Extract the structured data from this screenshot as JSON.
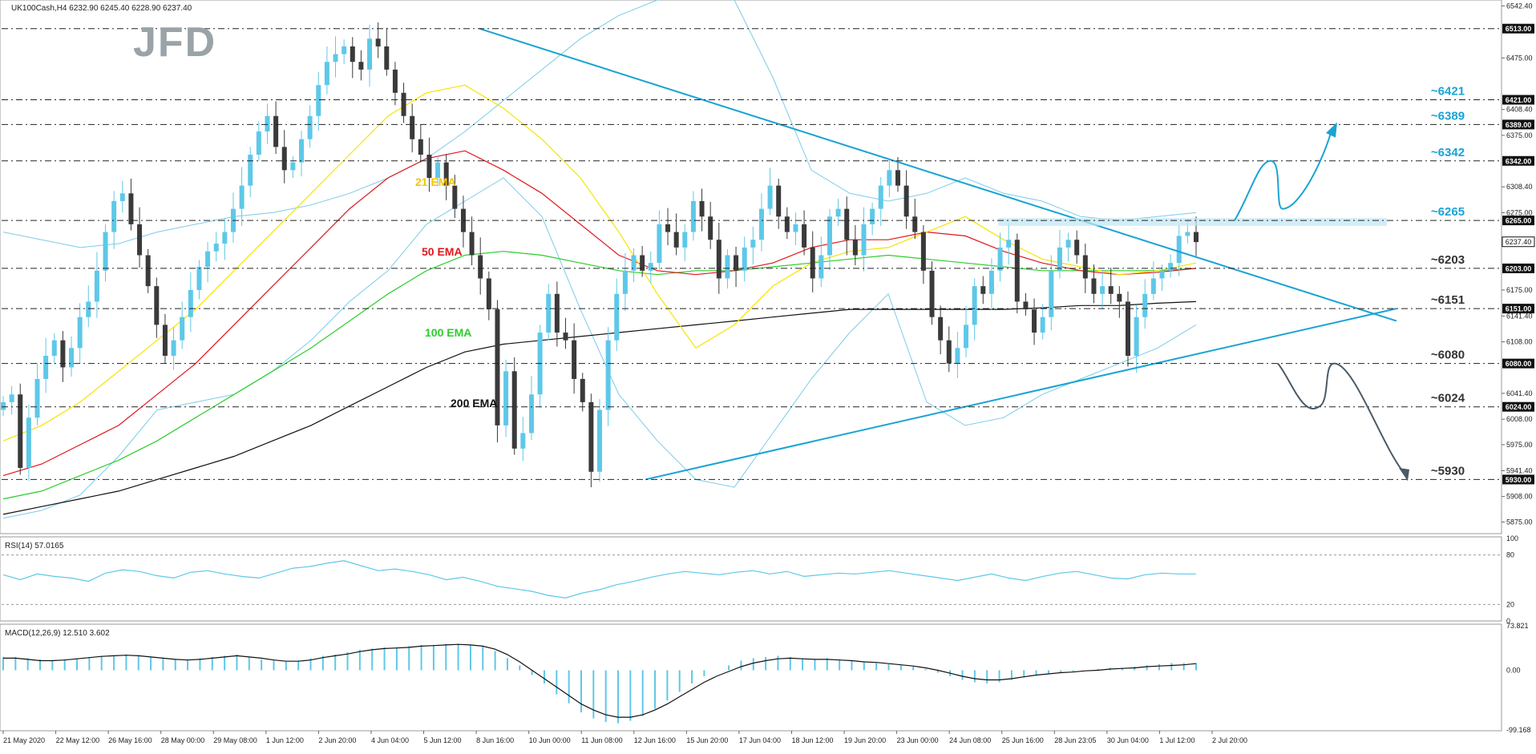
{
  "header": {
    "symbol_info": "UK100Cash,H4  6232.90 6245.40 6228.90 6237.40"
  },
  "brand": {
    "logo_text": "JFD"
  },
  "colors": {
    "bull": "#5ec8e8",
    "bear": "#3a3a3a",
    "ema21": "#f5e400",
    "ema50": "#e0161d",
    "ema100": "#2ecc2e",
    "ema200": "#111111",
    "bollinger": "#7dcbe8",
    "trendline": "#1aa3d4",
    "label_blue": "#1aa3d4",
    "label_dark": "#333333",
    "arrow_up": "#1aa3d4",
    "arrow_down": "#4a5a66"
  },
  "indicator_labels": {
    "ema21": "21 EMA",
    "ema50": "50 EMA",
    "ema100": "100 EMA",
    "ema200": "200 EMA"
  },
  "chart_data": [
    {
      "type": "candlestick",
      "symbol": "UK100Cash",
      "timeframe": "H4",
      "ylim": [
        5860,
        6550
      ],
      "y_ticks": [
        {
          "value": 6542.4,
          "label": "6542.40"
        },
        {
          "value": 6475.0,
          "label": "6475.00"
        },
        {
          "value": 6408.4,
          "label": "6408.40"
        },
        {
          "value": 6375.0,
          "label": "6375.00"
        },
        {
          "value": 6308.4,
          "label": "6308.40"
        },
        {
          "value": 6275.0,
          "label": "6275.00"
        },
        {
          "value": 6175.0,
          "label": "6175.00"
        },
        {
          "value": 6141.4,
          "label": "6141.40"
        },
        {
          "value": 6108.0,
          "label": "6108.00"
        },
        {
          "value": 6041.4,
          "label": "6041.40"
        },
        {
          "value": 6008.0,
          "label": "6008.00"
        },
        {
          "value": 5975.0,
          "label": "5975.00"
        },
        {
          "value": 5941.4,
          "label": "5941.40"
        },
        {
          "value": 5908.0,
          "label": "5908.00"
        },
        {
          "value": 5875.0,
          "label": "5875.00"
        }
      ],
      "levels": [
        {
          "value": 6513,
          "box_label": "6513.00",
          "annotation": ""
        },
        {
          "value": 6421,
          "box_label": "6421.00",
          "annotation": "~6421"
        },
        {
          "value": 6389,
          "box_label": "6389.00",
          "annotation": "~6389"
        },
        {
          "value": 6342,
          "box_label": "6342.00",
          "annotation": "~6342"
        },
        {
          "value": 6265,
          "box_label": "6265.00",
          "annotation": "~6265"
        },
        {
          "value": 6203,
          "box_label": "6203.00",
          "annotation": "~6203"
        },
        {
          "value": 6151,
          "box_label": "6151.00",
          "annotation": "~6151"
        },
        {
          "value": 6080,
          "box_label": "6080.00",
          "annotation": "~6080"
        },
        {
          "value": 6024,
          "box_label": "6024.00",
          "annotation": "~6024"
        },
        {
          "value": 5930,
          "box_label": "5930.00",
          "annotation": "~5930"
        }
      ],
      "current_price": {
        "value": 6237.4,
        "label": "6237.40"
      },
      "x_labels": [
        "21 May 2020",
        "22 May 12:00",
        "26 May 16:00",
        "28 May 00:00",
        "29 May 08:00",
        "1 Jun 12:00",
        "2 Jun 20:00",
        "4 Jun 04:00",
        "5 Jun 12:00",
        "8 Jun 16:00",
        "10 Jun 00:00",
        "11 Jun 08:00",
        "12 Jun 16:00",
        "15 Jun 20:00",
        "17 Jun 04:00",
        "18 Jun 12:00",
        "19 Jun 20:00",
        "23 Jun 00:00",
        "24 Jun 08:00",
        "25 Jun 16:00",
        "28 Jun 23:05",
        "30 Jun 04:00",
        "1 Jul 12:00",
        "2 Jul 20:00"
      ],
      "close_path": [
        6030,
        6040,
        5945,
        6010,
        6060,
        6090,
        6110,
        6075,
        6100,
        6140,
        6160,
        6200,
        6250,
        6290,
        6300,
        6260,
        6220,
        6180,
        6130,
        6090,
        6110,
        6140,
        6175,
        6205,
        6225,
        6235,
        6250,
        6280,
        6310,
        6350,
        6380,
        6400,
        6360,
        6330,
        6340,
        6370,
        6400,
        6440,
        6470,
        6480,
        6490,
        6470,
        6460,
        6500,
        6490,
        6460,
        6430,
        6400,
        6370,
        6350,
        6320,
        6340,
        6310,
        6280,
        6250,
        6220,
        6190,
        6150,
        6000,
        6070,
        5970,
        5990,
        6040,
        6120,
        6170,
        6120,
        6110,
        6060,
        6030,
        5940,
        6020,
        6110,
        6170,
        6200,
        6220,
        6200,
        6210,
        6260,
        6250,
        6230,
        6250,
        6290,
        6270,
        6240,
        6190,
        6220,
        6200,
        6230,
        6240,
        6280,
        6310,
        6270,
        6250,
        6260,
        6230,
        6190,
        6220,
        6270,
        6280,
        6240,
        6220,
        6260,
        6280,
        6310,
        6330,
        6310,
        6270,
        6250,
        6200,
        6140,
        6110,
        6080,
        6100,
        6130,
        6180,
        6170,
        6200,
        6230,
        6240,
        6160,
        6150,
        6120,
        6140,
        6200,
        6230,
        6240,
        6220,
        6190,
        6170,
        6180,
        6170,
        6160,
        6090,
        6140,
        6170,
        6190,
        6200,
        6210,
        6245,
        6250,
        6237
      ],
      "bb_upper": [
        6250,
        6240,
        6230,
        6235,
        6250,
        6260,
        6270,
        6275,
        6285,
        6300,
        6320,
        6345,
        6380,
        6420,
        6460,
        6500,
        6530,
        6550,
        6560,
        6550,
        6450,
        6330,
        6300,
        6290,
        6300,
        6320,
        6300,
        6290,
        6270,
        6265,
        6270,
        6275
      ],
      "bb_lower": [
        5880,
        5890,
        5910,
        5960,
        6020,
        6030,
        6040,
        6070,
        6110,
        6160,
        6200,
        6260,
        6290,
        6320,
        6270,
        6150,
        6040,
        5980,
        5930,
        5920,
        5990,
        6060,
        6120,
        6170,
        6030,
        6000,
        6010,
        6040,
        6060,
        6080,
        6100,
        6130
      ],
      "ema21": [
        5980,
        6000,
        6030,
        6070,
        6110,
        6150,
        6200,
        6250,
        6300,
        6350,
        6400,
        6430,
        6440,
        6410,
        6370,
        6320,
        6250,
        6170,
        6100,
        6130,
        6180,
        6210,
        6225,
        6230,
        6250,
        6270,
        6240,
        6215,
        6205,
        6195,
        6200,
        6210
      ],
      "ema50": [
        5935,
        5950,
        5975,
        6000,
        6040,
        6080,
        6130,
        6180,
        6230,
        6280,
        6320,
        6345,
        6355,
        6330,
        6300,
        6260,
        6220,
        6200,
        6195,
        6200,
        6210,
        6230,
        6240,
        6240,
        6250,
        6245,
        6225,
        6210,
        6200,
        6195,
        6198,
        6203
      ],
      "ema100": [
        5905,
        5915,
        5935,
        5955,
        5980,
        6010,
        6040,
        6070,
        6100,
        6135,
        6170,
        6200,
        6220,
        6225,
        6220,
        6210,
        6200,
        6195,
        6200,
        6200,
        6205,
        6210,
        6215,
        6220,
        6215,
        6210,
        6205,
        6200,
        6200,
        6200,
        6200,
        6203
      ],
      "ema200": [
        5885,
        5895,
        5905,
        5915,
        5930,
        5945,
        5960,
        5980,
        6000,
        6025,
        6050,
        6075,
        6095,
        6105,
        6110,
        6115,
        6120,
        6125,
        6130,
        6135,
        6140,
        6145,
        6150,
        6150,
        6150,
        6150,
        6150,
        6152,
        6155,
        6155,
        6158,
        6160
      ]
    },
    {
      "type": "line",
      "name": "RSI(14) 57.0165",
      "ylim": [
        0,
        100
      ],
      "y_ticks": [
        {
          "value": 100,
          "label": "100"
        },
        {
          "value": 80,
          "label": "80"
        },
        {
          "value": 20,
          "label": "20"
        },
        {
          "value": 0,
          "label": "0"
        }
      ],
      "values": [
        56,
        50,
        57,
        54,
        52,
        48,
        58,
        62,
        60,
        55,
        52,
        59,
        61,
        57,
        54,
        52,
        58,
        64,
        66,
        70,
        73,
        67,
        61,
        63,
        60,
        56,
        50,
        53,
        48,
        42,
        39,
        36,
        31,
        28,
        34,
        38,
        44,
        48,
        53,
        57,
        60,
        58,
        56,
        59,
        61,
        57,
        60,
        54,
        56,
        58,
        57,
        59,
        61,
        58,
        55,
        52,
        49,
        53,
        57,
        52,
        49,
        54,
        58,
        60,
        56,
        52,
        51,
        56,
        58,
        57,
        57
      ]
    },
    {
      "type": "bar+line",
      "name": "MACD(12,26,9) 12.510 3.602",
      "ylim": [
        -99.168,
        73.821
      ],
      "y_ticks": [
        {
          "value": 73.821,
          "label": "73.821"
        },
        {
          "value": 0,
          "label": "0.00"
        },
        {
          "value": -99.168,
          "label": "-99.168"
        }
      ],
      "histogram": [
        22,
        22,
        20,
        18,
        16,
        18,
        20,
        22,
        24,
        24,
        26,
        24,
        22,
        20,
        18,
        18,
        20,
        22,
        24,
        26,
        22,
        18,
        16,
        14,
        16,
        20,
        24,
        26,
        30,
        34,
        36,
        38,
        38,
        40,
        42,
        42,
        44,
        44,
        42,
        40,
        32,
        20,
        8,
        -8,
        -22,
        -40,
        -55,
        -70,
        -80,
        -86,
        -88,
        -84,
        -76,
        -64,
        -50,
        -36,
        -22,
        -10,
        0,
        8,
        16,
        20,
        22,
        24,
        22,
        20,
        18,
        20,
        18,
        16,
        14,
        12,
        10,
        8,
        6,
        2,
        -4,
        -10,
        -16,
        -20,
        -22,
        -20,
        -16,
        -12,
        -8,
        -6,
        -4,
        -2,
        0,
        2,
        4,
        4,
        6,
        8,
        10,
        12,
        12,
        12
      ],
      "signal": [
        20,
        20,
        18,
        16,
        16,
        17,
        19,
        21,
        23,
        24,
        25,
        24,
        22,
        20,
        18,
        17,
        18,
        20,
        22,
        24,
        22,
        20,
        17,
        15,
        15,
        17,
        21,
        24,
        27,
        31,
        34,
        36,
        37,
        38,
        40,
        41,
        42,
        43,
        42,
        40,
        35,
        26,
        14,
        0,
        -14,
        -28,
        -42,
        -56,
        -66,
        -74,
        -78,
        -78,
        -74,
        -66,
        -56,
        -44,
        -32,
        -20,
        -10,
        -2,
        6,
        12,
        16,
        19,
        20,
        19,
        18,
        18,
        17,
        16,
        14,
        13,
        11,
        9,
        7,
        4,
        0,
        -5,
        -10,
        -14,
        -16,
        -16,
        -14,
        -11,
        -8,
        -6,
        -4,
        -3,
        -1,
        0,
        2,
        3,
        4,
        6,
        7,
        8,
        9,
        11
      ]
    }
  ]
}
